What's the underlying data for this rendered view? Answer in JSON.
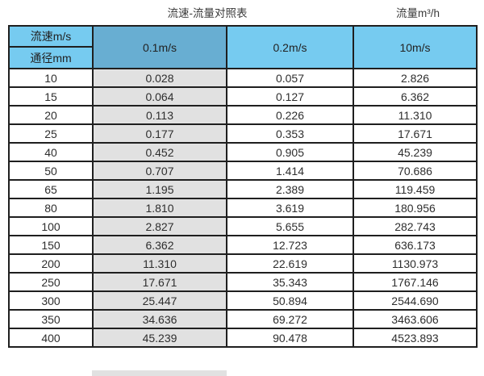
{
  "titles": {
    "main": "流速-流量对照表",
    "unit": "流量m³/h"
  },
  "table": {
    "corner": {
      "top_label": "流速m/s",
      "bottom_label": "通径mm"
    },
    "column_headers": [
      "0.1m/s",
      "0.2m/s",
      "10m/s"
    ],
    "rows": [
      {
        "diameter": "10",
        "values": [
          "0.028",
          "0.057",
          "2.826"
        ]
      },
      {
        "diameter": "15",
        "values": [
          "0.064",
          "0.127",
          "6.362"
        ]
      },
      {
        "diameter": "20",
        "values": [
          "0.113",
          "0.226",
          "11.310"
        ]
      },
      {
        "diameter": "25",
        "values": [
          "0.177",
          "0.353",
          "17.671"
        ]
      },
      {
        "diameter": "40",
        "values": [
          "0.452",
          "0.905",
          "45.239"
        ]
      },
      {
        "diameter": "50",
        "values": [
          "0.707",
          "1.414",
          "70.686"
        ]
      },
      {
        "diameter": "65",
        "values": [
          "1.195",
          "2.389",
          "119.459"
        ]
      },
      {
        "diameter": "80",
        "values": [
          "1.810",
          "3.619",
          "180.956"
        ]
      },
      {
        "diameter": "100",
        "values": [
          "2.827",
          "5.655",
          "282.743"
        ]
      },
      {
        "diameter": "150",
        "values": [
          "6.362",
          "12.723",
          "636.173"
        ]
      },
      {
        "diameter": "200",
        "values": [
          "11.310",
          "22.619",
          "1130.973"
        ]
      },
      {
        "diameter": "250",
        "values": [
          "17.671",
          "35.343",
          "1767.146"
        ]
      },
      {
        "diameter": "300",
        "values": [
          "25.447",
          "50.894",
          "2544.690"
        ]
      },
      {
        "diameter": "350",
        "values": [
          "34.636",
          "69.272",
          "3463.606"
        ]
      },
      {
        "diameter": "400",
        "values": [
          "45.239",
          "90.478",
          "4523.893"
        ]
      }
    ]
  },
  "colors": {
    "header-light": "#76cbf0",
    "header-dark": "#68aed2",
    "col-gray": "#e1e1e1",
    "border": "#1f1f1f",
    "text": "#2e2e2e"
  }
}
